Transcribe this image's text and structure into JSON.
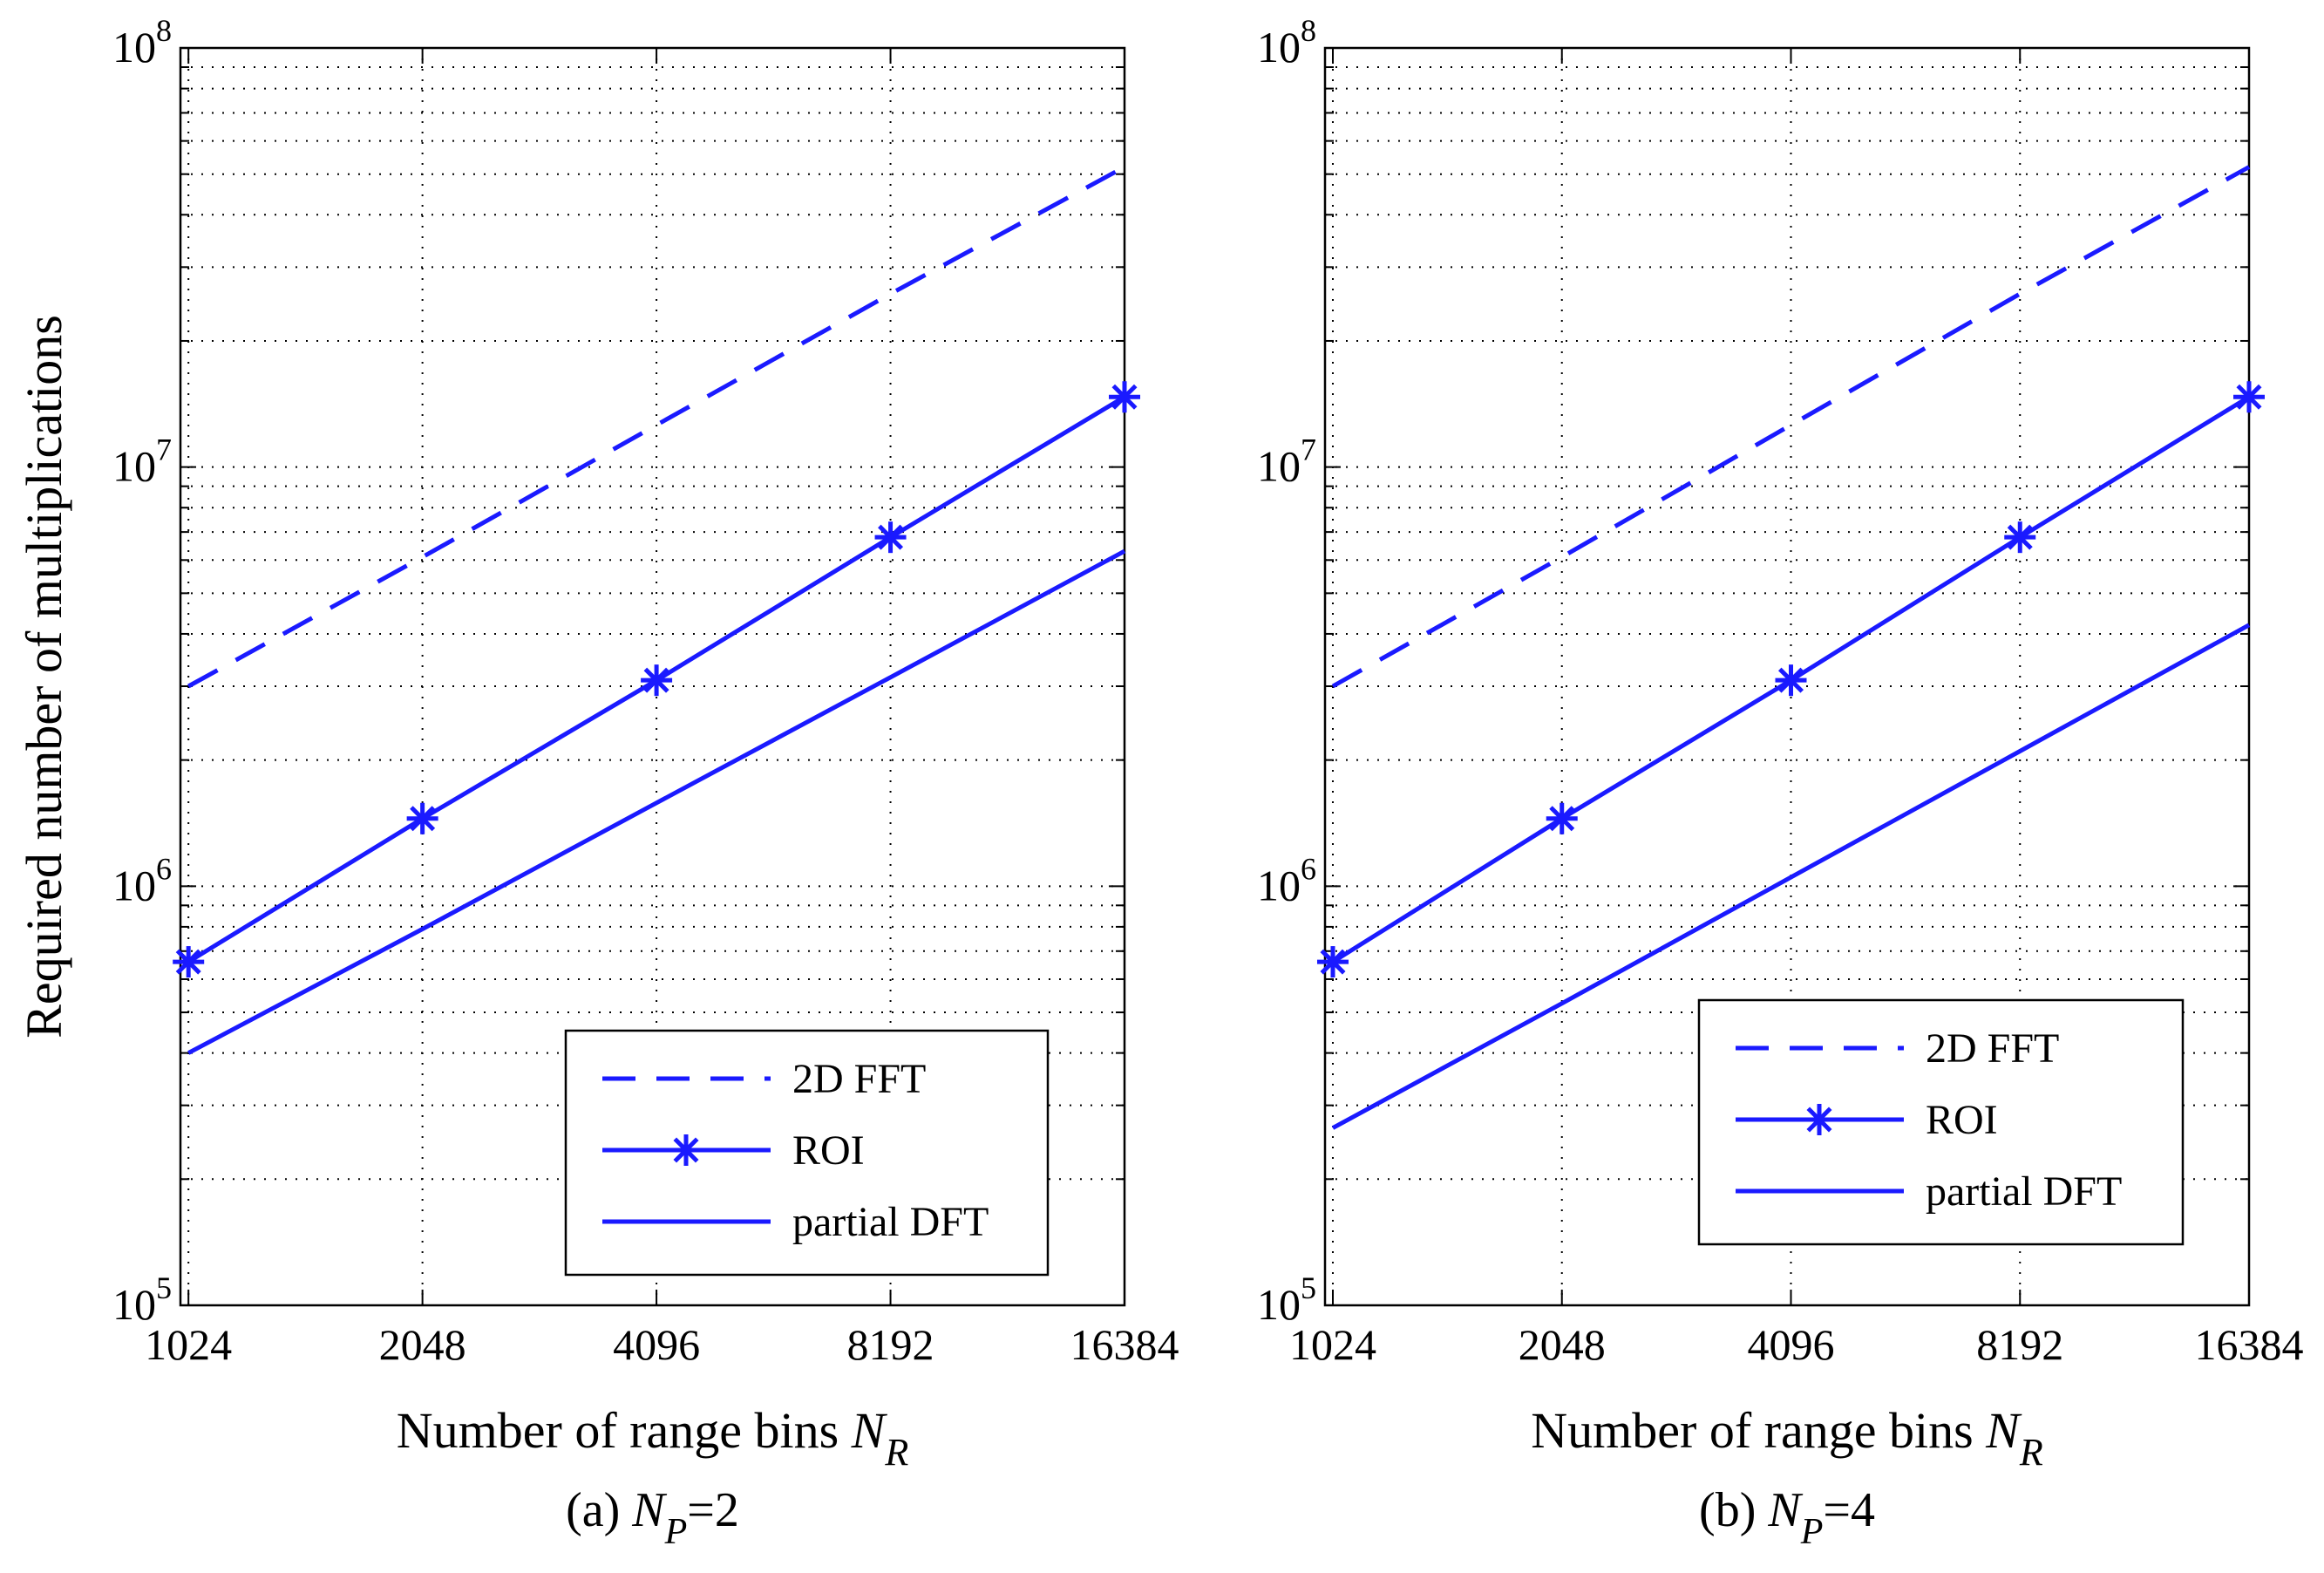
{
  "shared": {
    "ylabel": "Required number of multiplications",
    "xlabel_text": "Number of range bins ",
    "xlabel_var": "N",
    "xlabel_sub": "R",
    "xticks": [
      "1024",
      "2048",
      "4096",
      "8192",
      "16384"
    ],
    "ytick_base": "10",
    "ytick_exps": [
      "5",
      "6",
      "7",
      "8"
    ]
  },
  "chart_data": [
    {
      "type": "line",
      "caption_prefix": "(a)  ",
      "caption_var": "N",
      "caption_sub": "P",
      "caption_suffix": "=2",
      "xscale": "log2",
      "yscale": "log10",
      "x": [
        1024,
        2048,
        4096,
        8192,
        16384
      ],
      "xlim": [
        1000,
        16384
      ],
      "ylim": [
        100000,
        100000000
      ],
      "grid": true,
      "legend_position": "lower-right",
      "series": [
        {
          "name": "2D FFT",
          "style": "dashed",
          "marker": "none",
          "values": [
            3000000,
            6100000,
            12600000,
            25900000,
            52000000
          ]
        },
        {
          "name": "ROI",
          "style": "solid",
          "marker": "asterisk",
          "values": [
            660000,
            1450000,
            3100000,
            6800000,
            14700000
          ]
        },
        {
          "name": "partial DFT",
          "style": "solid",
          "marker": "none",
          "values": [
            400000,
            790000,
            1580000,
            3150000,
            6300000
          ]
        }
      ]
    },
    {
      "type": "line",
      "caption_prefix": "(b)  ",
      "caption_var": "N",
      "caption_sub": "P",
      "caption_suffix": "=4",
      "xscale": "log2",
      "yscale": "log10",
      "x": [
        1024,
        2048,
        4096,
        8192,
        16384
      ],
      "xlim": [
        1000,
        16384
      ],
      "ylim": [
        100000,
        100000000
      ],
      "grid": true,
      "legend_position": "lower-right",
      "series": [
        {
          "name": "2D FFT",
          "style": "dashed",
          "marker": "none",
          "values": [
            3000000,
            6100000,
            12600000,
            25900000,
            52000000
          ]
        },
        {
          "name": "ROI",
          "style": "solid",
          "marker": "asterisk",
          "values": [
            660000,
            1450000,
            3100000,
            6800000,
            14700000
          ]
        },
        {
          "name": "partial DFT",
          "style": "solid",
          "marker": "none",
          "values": [
            265000,
            525000,
            1050000,
            2100000,
            4200000
          ]
        }
      ]
    }
  ],
  "colors": {
    "line": "#1a1aff",
    "axis": "#000000",
    "grid": "#000000"
  }
}
